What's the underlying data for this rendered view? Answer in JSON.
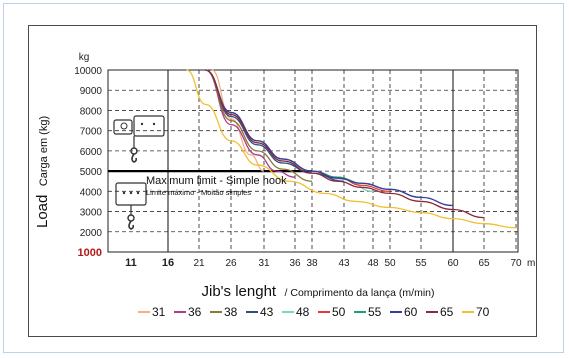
{
  "chart_data": {
    "type": "line",
    "ylabel_main": "Load",
    "ylabel_sub": "Carga em (kg)",
    "yunit": "kg",
    "xlabel_main": "Jib's lenght",
    "xlabel_sub": "/ Comprimento da lança (m/min)",
    "xunit": "m",
    "ylim": [
      1000,
      10000
    ],
    "xlim": [
      8,
      70
    ],
    "y_ticks": [
      "1000",
      "2000",
      "3000",
      "4000",
      "5000",
      "6000",
      "7000",
      "8000",
      "9000",
      "10000"
    ],
    "x_ticks": [
      {
        "value": 11,
        "label": "11",
        "style": "bold"
      },
      {
        "value": 16,
        "label": "16",
        "style": "bold"
      },
      {
        "value": 21,
        "label": "21"
      },
      {
        "value": 26,
        "label": "26"
      },
      {
        "value": 31,
        "label": "31"
      },
      {
        "value": 36,
        "label": "36"
      },
      {
        "value": 38,
        "label": "38"
      },
      {
        "value": 43,
        "label": "43"
      },
      {
        "value": 48,
        "label": "48"
      },
      {
        "value": 50,
        "label": "50"
      },
      {
        "value": 55,
        "label": "55"
      },
      {
        "value": 60,
        "label": "60"
      },
      {
        "value": 65,
        "label": "65"
      },
      {
        "value": 70,
        "label": "70"
      }
    ],
    "grid": true,
    "legend_position": "bottom",
    "annotation": {
      "text": "Maximum limit - Simple hook",
      "subtext": "Limite máximo - Moitão simples",
      "y": 5000
    },
    "series": [
      {
        "name": "31",
        "color": "#f4b183",
        "x": [
          23,
          26,
          29,
          31
        ],
        "y": [
          10000,
          7600,
          5800,
          5000
        ]
      },
      {
        "name": "36",
        "color": "#b03a8c",
        "x": [
          22,
          26,
          30,
          33,
          36
        ],
        "y": [
          10000,
          7300,
          5800,
          5000,
          4700
        ]
      },
      {
        "name": "38",
        "color": "#8a7a3a",
        "x": [
          22,
          26,
          30,
          34,
          38
        ],
        "y": [
          10000,
          7500,
          6000,
          5100,
          4500
        ]
      },
      {
        "name": "43",
        "color": "#2f4f7f",
        "x": [
          22,
          26,
          30,
          34,
          38,
          43
        ],
        "y": [
          10000,
          7700,
          6300,
          5400,
          4900,
          4500
        ]
      },
      {
        "name": "48",
        "color": "#7fd3c0",
        "x": [
          22,
          26,
          30,
          34,
          38,
          43,
          48
        ],
        "y": [
          10000,
          7800,
          6400,
          5500,
          5000,
          4600,
          4000
        ]
      },
      {
        "name": "50",
        "color": "#e03c3c",
        "x": [
          22,
          26,
          30,
          34,
          38,
          42,
          46,
          50
        ],
        "y": [
          10000,
          7900,
          6500,
          5600,
          5000,
          4700,
          4300,
          4000
        ]
      },
      {
        "name": "55",
        "color": "#22a06b",
        "x": [
          22,
          26,
          30,
          34,
          38,
          42,
          46,
          50,
          55
        ],
        "y": [
          10000,
          7900,
          6500,
          5600,
          5000,
          4700,
          4400,
          4100,
          3700
        ]
      },
      {
        "name": "60",
        "color": "#3a3aa0",
        "x": [
          22,
          26,
          30,
          34,
          38,
          42,
          46,
          50,
          55,
          60
        ],
        "y": [
          10000,
          7900,
          6500,
          5600,
          5000,
          4650,
          4400,
          4100,
          3700,
          3300
        ]
      },
      {
        "name": "65",
        "color": "#8a2a3a",
        "x": [
          22,
          26,
          30,
          34,
          38,
          42,
          46,
          50,
          55,
          60,
          65
        ],
        "y": [
          10000,
          7800,
          6400,
          5500,
          4900,
          4500,
          4200,
          3900,
          3500,
          3100,
          2700
        ]
      },
      {
        "name": "70",
        "color": "#f0c030",
        "x": [
          19,
          22,
          26,
          30,
          35,
          40,
          45,
          50,
          55,
          60,
          65,
          70
        ],
        "y": [
          10000,
          8300,
          6500,
          5300,
          4500,
          3900,
          3500,
          3200,
          2950,
          2650,
          2400,
          2200
        ]
      }
    ]
  }
}
